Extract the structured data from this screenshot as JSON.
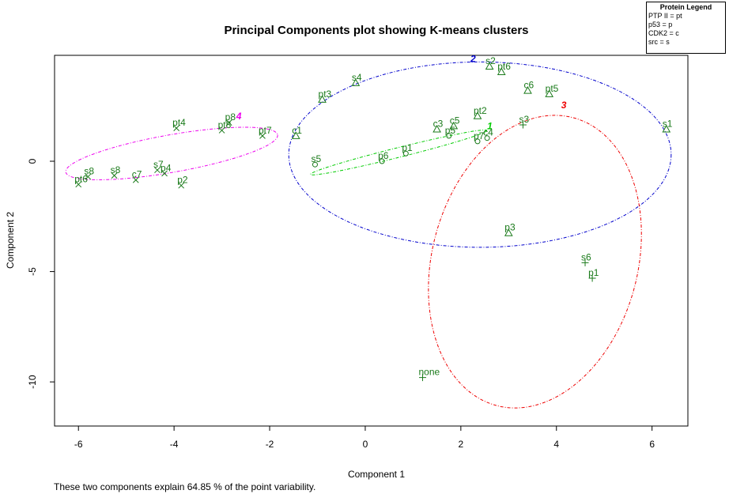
{
  "chart_data": {
    "type": "scatter",
    "title": "Principal Components plot showing K-means clusters",
    "xlabel": "Component 1",
    "ylabel": "Component 2",
    "xlim": [
      -6.5,
      6.75
    ],
    "ylim": [
      -12,
      4.8
    ],
    "xticks": [
      -6,
      -4,
      -2,
      0,
      2,
      4,
      6
    ],
    "yticks": [
      -10,
      -5,
      0
    ],
    "points": [
      {
        "label": "pt6",
        "x": -6.0,
        "y": -1.05,
        "marker": "x",
        "cluster": 4
      },
      {
        "label": "s8",
        "x": -5.8,
        "y": -0.7,
        "marker": "x",
        "cluster": 4
      },
      {
        "label": "s8",
        "x": -5.25,
        "y": -0.65,
        "marker": "x",
        "cluster": 4
      },
      {
        "label": "c7",
        "x": -4.8,
        "y": -0.85,
        "marker": "x",
        "cluster": 4
      },
      {
        "label": "s7",
        "x": -4.35,
        "y": -0.4,
        "marker": "x",
        "cluster": 4
      },
      {
        "label": "p4",
        "x": -4.2,
        "y": -0.55,
        "marker": "x",
        "cluster": 4
      },
      {
        "label": "p2",
        "x": -3.85,
        "y": -1.1,
        "marker": "x",
        "cluster": 4
      },
      {
        "label": "pt4",
        "x": -3.95,
        "y": 1.5,
        "marker": "x",
        "cluster": 4
      },
      {
        "label": "p8",
        "x": -2.85,
        "y": 1.75,
        "marker": "x",
        "cluster": 4
      },
      {
        "label": "pt8",
        "x": -3.0,
        "y": 1.4,
        "marker": "x",
        "cluster": 4
      },
      {
        "label": "pt7",
        "x": -2.15,
        "y": 1.15,
        "marker": "x",
        "cluster": 4
      },
      {
        "label": "c1",
        "x": -1.45,
        "y": 1.15,
        "marker": "triangle",
        "cluster": 2
      },
      {
        "label": "pt3",
        "x": -0.9,
        "y": 2.8,
        "marker": "triangle",
        "cluster": 2
      },
      {
        "label": "s4",
        "x": -0.2,
        "y": 3.55,
        "marker": "triangle",
        "cluster": 2
      },
      {
        "label": "s2",
        "x": 2.6,
        "y": 4.3,
        "marker": "triangle",
        "cluster": 2
      },
      {
        "label": "pt6",
        "x": 2.85,
        "y": 4.05,
        "marker": "triangle",
        "cluster": 2
      },
      {
        "label": "c6",
        "x": 3.4,
        "y": 3.2,
        "marker": "triangle",
        "cluster": 2
      },
      {
        "label": "pt5",
        "x": 3.85,
        "y": 3.05,
        "marker": "triangle",
        "cluster": 2
      },
      {
        "label": "pt2",
        "x": 2.35,
        "y": 2.05,
        "marker": "triangle",
        "cluster": 2
      },
      {
        "label": "c3",
        "x": 1.5,
        "y": 1.45,
        "marker": "triangle",
        "cluster": 2
      },
      {
        "label": "c5",
        "x": 1.85,
        "y": 1.6,
        "marker": "triangle",
        "cluster": 2
      },
      {
        "label": "s3",
        "x": 3.3,
        "y": 1.65,
        "marker": "plus",
        "cluster": 3
      },
      {
        "label": "s1",
        "x": 6.3,
        "y": 1.45,
        "marker": "triangle",
        "cluster": 2
      },
      {
        "label": "p3",
        "x": 3.0,
        "y": -3.25,
        "marker": "triangle",
        "cluster": 2
      },
      {
        "label": "p5",
        "x": 1.75,
        "y": 1.15,
        "marker": "circle",
        "cluster": 1
      },
      {
        "label": "p7",
        "x": 2.35,
        "y": 0.9,
        "marker": "circle",
        "cluster": 1
      },
      {
        "label": "c4",
        "x": 2.55,
        "y": 1.05,
        "marker": "circle",
        "cluster": 1
      },
      {
        "label": "p1",
        "x": 0.85,
        "y": 0.35,
        "marker": "circle",
        "cluster": 1
      },
      {
        "label": "p6",
        "x": 0.35,
        "y": 0.0,
        "marker": "circle",
        "cluster": 1
      },
      {
        "label": "s5",
        "x": -1.05,
        "y": -0.15,
        "marker": "circle",
        "cluster": 1
      },
      {
        "label": "s6",
        "x": 4.6,
        "y": -4.6,
        "marker": "plus",
        "cluster": 3
      },
      {
        "label": "p1",
        "x": 4.75,
        "y": -5.3,
        "marker": "plus",
        "cluster": 3
      },
      {
        "label": "none",
        "x": 1.2,
        "y": -9.8,
        "marker": "plus",
        "cluster": 3
      }
    ],
    "clusters": [
      {
        "id": "1",
        "color": "#00cc00",
        "label_x": 2.55,
        "label_y": 1.45,
        "cx": 0.7,
        "cy": 0.4,
        "rx": 1.9,
        "ry": 0.22,
        "rot": -14
      },
      {
        "id": "2",
        "color": "#0000cc",
        "label_x": 2.2,
        "label_y": 4.5,
        "cx": 2.4,
        "cy": 0.3,
        "rx": 4.0,
        "ry": 4.2,
        "rot": 0
      },
      {
        "id": "3",
        "color": "#ee0000",
        "label_x": 4.1,
        "label_y": 2.4,
        "cx": 3.55,
        "cy": -4.55,
        "rx": 2.15,
        "ry": 6.75,
        "rot": 15
      },
      {
        "id": "4",
        "color": "#ee00ee",
        "label_x": -2.7,
        "label_y": 1.9,
        "cx": -4.05,
        "cy": 0.35,
        "rx": 2.25,
        "ry": 0.85,
        "rot": -10
      }
    ],
    "legend": {
      "title": "Protein Legend",
      "position": "top-right",
      "entries": [
        "PTP II = pt",
        "p53 = p",
        "CDK2 = c",
        "src = s"
      ]
    },
    "footnote": "These two components explain 64.85 % of the point variability."
  }
}
